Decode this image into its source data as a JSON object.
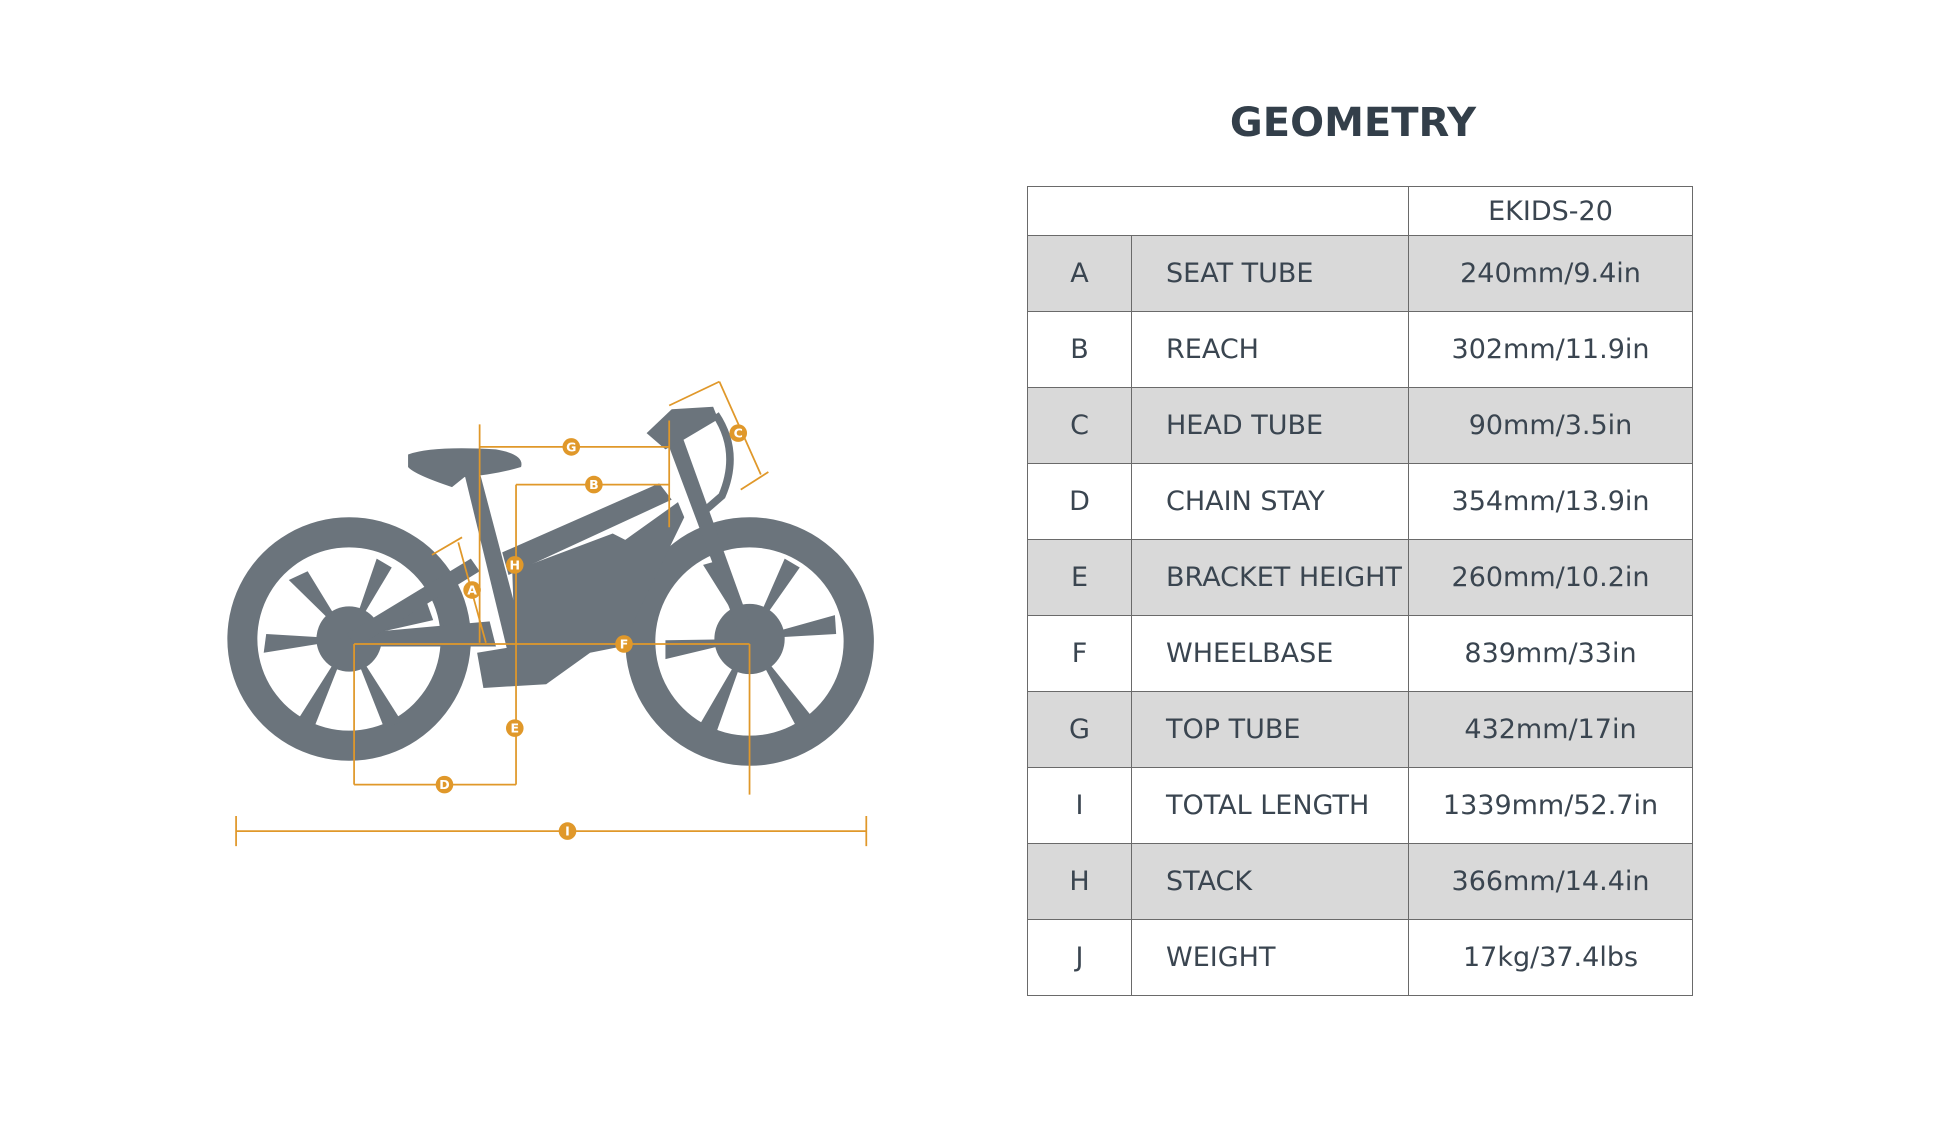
{
  "title": "GEOMETRY",
  "colors": {
    "accent": "#e0982a",
    "bike": "#6b747c",
    "title": "#333f4a",
    "row_shade": "#d9d9d9"
  },
  "diagram_labels": [
    "A",
    "B",
    "C",
    "D",
    "E",
    "F",
    "G",
    "H",
    "I"
  ],
  "table": {
    "model": "EKIDS-20",
    "rows": [
      {
        "key": "A",
        "name": "SEAT TUBE",
        "value": "240mm/9.4in"
      },
      {
        "key": "B",
        "name": "REACH",
        "value": "302mm/11.9in"
      },
      {
        "key": "C",
        "name": "HEAD TUBE",
        "value": "90mm/3.5in"
      },
      {
        "key": "D",
        "name": "CHAIN STAY",
        "value": "354mm/13.9in"
      },
      {
        "key": "E",
        "name": "BRACKET HEIGHT",
        "value": "260mm/10.2in"
      },
      {
        "key": "F",
        "name": "WHEELBASE",
        "value": "839mm/33in"
      },
      {
        "key": "G",
        "name": "TOP TUBE",
        "value": "432mm/17in"
      },
      {
        "key": "I",
        "name": "TOTAL LENGTH",
        "value": "1339mm/52.7in"
      },
      {
        "key": "H",
        "name": "STACK",
        "value": "366mm/14.4in"
      },
      {
        "key": "J",
        "name": "WEIGHT",
        "value": "17kg/37.4lbs"
      }
    ]
  }
}
